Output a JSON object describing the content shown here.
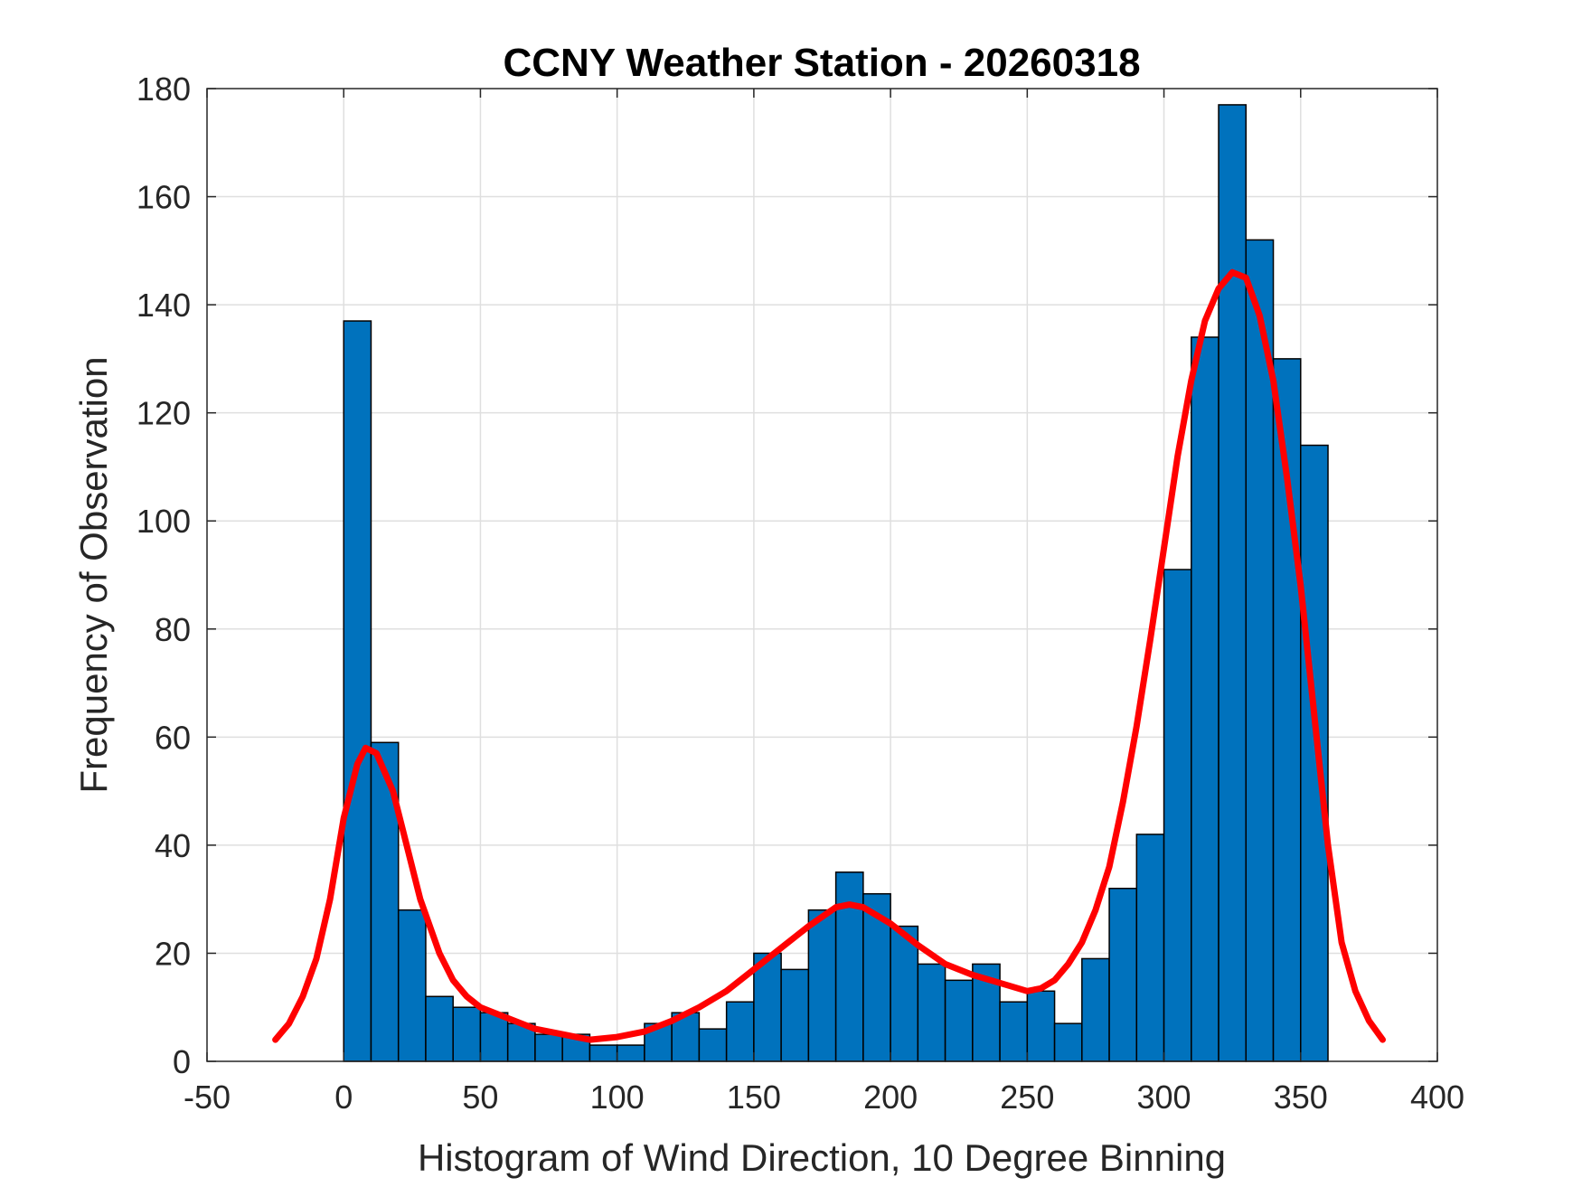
{
  "chart_data": {
    "type": "bar",
    "title": "CCNY Weather Station - 20260318",
    "xlabel": "Histogram of Wind Direction, 10 Degree Binning",
    "ylabel": "Frequency of Observation",
    "xlim": [
      -50,
      400
    ],
    "ylim": [
      0,
      180
    ],
    "xticks": [
      -50,
      0,
      50,
      100,
      150,
      200,
      250,
      300,
      350,
      400
    ],
    "yticks": [
      0,
      20,
      40,
      60,
      80,
      100,
      120,
      140,
      160,
      180
    ],
    "grid": true,
    "bin_width": 10,
    "bin_edges_start": [
      0,
      10,
      20,
      30,
      40,
      50,
      60,
      70,
      80,
      90,
      100,
      110,
      120,
      130,
      140,
      150,
      160,
      170,
      180,
      190,
      200,
      210,
      220,
      230,
      240,
      250,
      260,
      270,
      280,
      290,
      300,
      310,
      320,
      330,
      340,
      350
    ],
    "values": [
      137,
      59,
      28,
      12,
      10,
      9,
      7,
      5,
      5,
      3,
      3,
      7,
      9,
      6,
      11,
      20,
      17,
      28,
      35,
      31,
      25,
      18,
      15,
      18,
      11,
      13,
      7,
      19,
      32,
      42,
      91,
      134,
      177,
      152,
      130,
      114
    ],
    "bar_color": "#0072BD",
    "bar_edge_color": "#000000",
    "curve": {
      "color": "#FF0000",
      "x": [
        -25,
        -20,
        -15,
        -10,
        -5,
        0,
        5,
        8,
        12,
        18,
        22,
        28,
        35,
        40,
        45,
        50,
        60,
        70,
        80,
        90,
        100,
        110,
        120,
        130,
        140,
        150,
        160,
        170,
        180,
        185,
        190,
        200,
        210,
        220,
        230,
        240,
        250,
        255,
        260,
        265,
        270,
        275,
        280,
        285,
        290,
        295,
        300,
        305,
        310,
        315,
        320,
        325,
        330,
        335,
        340,
        345,
        350,
        355,
        360,
        365,
        370,
        375,
        380
      ],
      "y": [
        4,
        7,
        12,
        19,
        30,
        45,
        55,
        58,
        57,
        50,
        42,
        30,
        20,
        15,
        12,
        10,
        8,
        6,
        5,
        4,
        4.5,
        5.5,
        7.5,
        10,
        13,
        17,
        21,
        25,
        28.5,
        29,
        28.5,
        25.5,
        21.5,
        18,
        16,
        14.5,
        13,
        13.5,
        15,
        18,
        22,
        28,
        36,
        48,
        62,
        78,
        95,
        112,
        126,
        137,
        143,
        146,
        145,
        138,
        126,
        108,
        88,
        64,
        40,
        22,
        13,
        7.5,
        4
      ]
    }
  }
}
